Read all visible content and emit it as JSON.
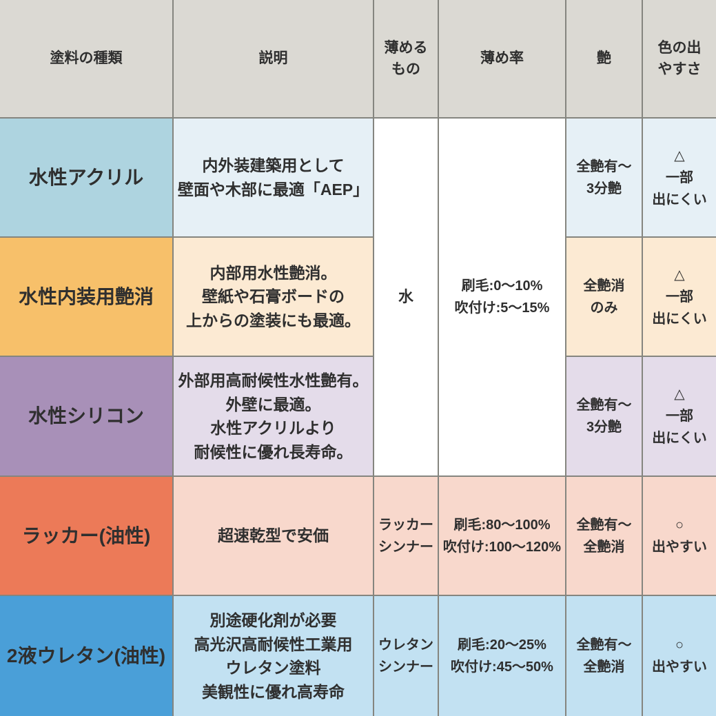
{
  "colors": {
    "header_bg": "#dbd9d3",
    "border": "#85857f",
    "text": "#2f2f2f",
    "white": "#ffffff",
    "rows": [
      {
        "label_bg": "#aed4e0",
        "cell_bg": "#e6f0f6"
      },
      {
        "label_bg": "#f7c06a",
        "cell_bg": "#fcead3"
      },
      {
        "label_bg": "#a890b8",
        "cell_bg": "#e4dcea"
      },
      {
        "label_bg": "#ec7a58",
        "cell_bg": "#f8d8cc"
      },
      {
        "label_bg": "#4a9fd8",
        "cell_bg": "#c2e1f2"
      }
    ]
  },
  "header": {
    "paint_type": "塗料の種類",
    "description": "説明",
    "thinner": "薄める\nもの",
    "ratio": "薄め率",
    "gloss": "艶",
    "color_ease": "色の出\nやすさ"
  },
  "merged": {
    "thinner_water": "水",
    "ratio_water": "刷毛:0〜10%\n吹付け:5〜15%"
  },
  "rows": [
    {
      "type": "水性アクリル",
      "description": "内外装建築用として\n壁面や木部に最適「AEP」",
      "gloss": "全艶有〜\n3分艶",
      "color_ease": "△\n一部\n出にくい"
    },
    {
      "type": "水性内装用艶消",
      "description": "内部用水性艶消。\n壁紙や石膏ボードの\n上からの塗装にも最適。",
      "gloss": "全艶消\nのみ",
      "color_ease": "△\n一部\n出にくい"
    },
    {
      "type": "水性シリコン",
      "description": "外部用高耐候性水性艶有。\n外壁に最適。\n水性アクリルより\n耐候性に優れ長寿命。",
      "gloss": "全艶有〜\n3分艶",
      "color_ease": "△\n一部\n出にくい"
    },
    {
      "type": "ラッカー(油性)",
      "description": "超速乾型で安価",
      "thinner": "ラッカー\nシンナー",
      "ratio": "刷毛:80〜100%\n吹付け:100〜120%",
      "gloss": "全艶有〜\n全艶消",
      "color_ease": "○\n出やすい"
    },
    {
      "type": "2液ウレタン(油性)",
      "description": "別途硬化剤が必要\n高光沢高耐候性工業用\nウレタン塗料\n美観性に優れ高寿命",
      "thinner": "ウレタン\nシンナー",
      "ratio": "刷毛:20〜25%\n吹付け:45〜50%",
      "gloss": "全艶有〜\n全艶消",
      "color_ease": "○\n出やすい"
    }
  ],
  "chart_data": {
    "type": "table",
    "columns": [
      "塗料の種類",
      "説明",
      "薄めるもの",
      "薄め率",
      "艶",
      "色の出やすさ"
    ],
    "rows": [
      [
        "水性アクリル",
        "内外装建築用として壁面や木部に最適「AEP」",
        "水",
        "刷毛:0〜10% 吹付け:5〜15%",
        "全艶有〜3分艶",
        "△ 一部出にくい"
      ],
      [
        "水性内装用艶消",
        "内部用水性艶消。壁紙や石膏ボードの上からの塗装にも最適。",
        "水",
        "刷毛:0〜10% 吹付け:5〜15%",
        "全艶消のみ",
        "△ 一部出にくい"
      ],
      [
        "水性シリコン",
        "外部用高耐候性水性艶有。外壁に最適。水性アクリルより耐候性に優れ長寿命。",
        "水",
        "刷毛:0〜10% 吹付け:5〜15%",
        "全艶有〜3分艶",
        "△ 一部出にくい"
      ],
      [
        "ラッカー(油性)",
        "超速乾型で安価",
        "ラッカーシンナー",
        "刷毛:80〜100% 吹付け:100〜120%",
        "全艶有〜全艶消",
        "○ 出やすい"
      ],
      [
        "2液ウレタン(油性)",
        "別途硬化剤が必要 高光沢高耐候性工業用ウレタン塗料 美観性に優れ高寿命",
        "ウレタンシンナー",
        "刷毛:20〜25% 吹付け:45〜50%",
        "全艶有〜全艶消",
        "○ 出やすい"
      ]
    ],
    "merged_cells": [
      {
        "columns": [
          "薄めるもの",
          "薄め率"
        ],
        "spans_rows": [
          "水性アクリル",
          "水性内装用艶消",
          "水性シリコン"
        ]
      }
    ]
  }
}
